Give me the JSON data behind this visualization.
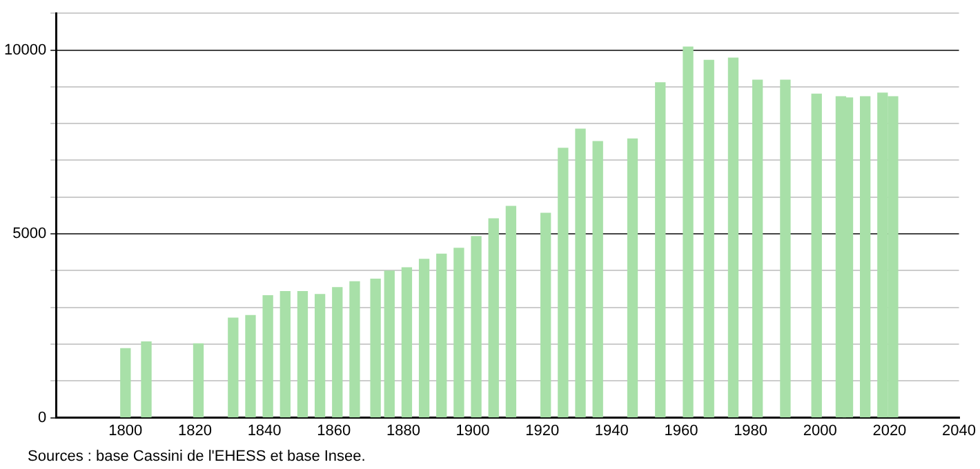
{
  "chart_data": {
    "type": "bar",
    "x": [
      1800,
      1806,
      1821,
      1831,
      1836,
      1841,
      1846,
      1851,
      1856,
      1861,
      1866,
      1872,
      1876,
      1881,
      1886,
      1891,
      1896,
      1901,
      1906,
      1911,
      1921,
      1926,
      1931,
      1936,
      1946,
      1954,
      1962,
      1968,
      1975,
      1982,
      1990,
      1999,
      2006,
      2008,
      2013,
      2018,
      2021
    ],
    "values": [
      1880,
      2060,
      2010,
      2710,
      2780,
      3320,
      3430,
      3430,
      3350,
      3540,
      3700,
      3770,
      3990,
      4080,
      4310,
      4450,
      4610,
      4930,
      5410,
      5750,
      5560,
      7330,
      7850,
      7510,
      7580,
      9110,
      10080,
      9720,
      9780,
      9180,
      9180,
      8800,
      8730,
      8700,
      8730,
      8830,
      8730
    ],
    "color": "#a8e0a8",
    "xlim": [
      1780,
      2040
    ],
    "xticks": [
      1800,
      1820,
      1840,
      1860,
      1880,
      1900,
      1920,
      1940,
      1960,
      1980,
      2000,
      2020,
      2040
    ],
    "ylim": [
      0,
      11000
    ],
    "yticks": [
      0,
      {
        "value": 1000,
        "label": null
      },
      {
        "value": 2000,
        "label": null
      },
      {
        "value": 3000,
        "label": null
      },
      {
        "value": 4000,
        "label": null
      },
      5000,
      {
        "value": 6000,
        "label": null
      },
      {
        "value": 7000,
        "label": null
      },
      {
        "value": 8000,
        "label": null
      },
      {
        "value": 9000,
        "label": null
      },
      10000,
      {
        "value": 11000,
        "label": null
      }
    ],
    "grid": "y",
    "legend": false,
    "annotations": [
      "Sources : base Cassini de l'EHESS et base Insee."
    ]
  }
}
